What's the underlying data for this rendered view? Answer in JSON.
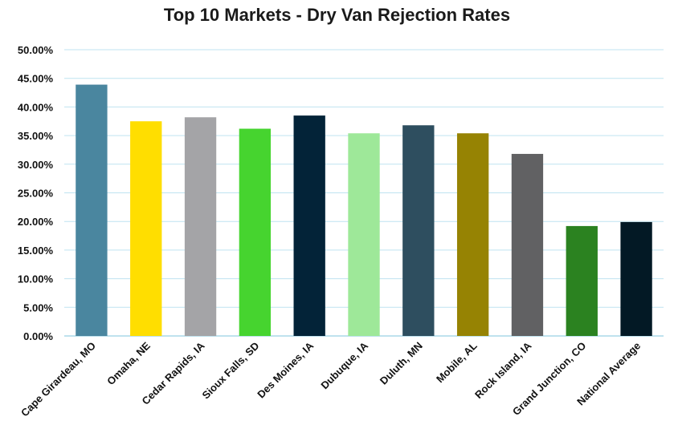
{
  "chart_data": {
    "type": "bar",
    "title": "Top 10 Markets - Dry Van Rejection Rates",
    "xlabel": "",
    "ylabel": "",
    "ylim": [
      0,
      0.5
    ],
    "y_ticks": [
      0,
      0.05,
      0.1,
      0.15,
      0.2,
      0.25,
      0.3,
      0.35,
      0.4,
      0.45,
      0.5
    ],
    "y_tick_labels": [
      "0.00%",
      "5.00%",
      "10.00%",
      "15.00%",
      "20.00%",
      "25.00%",
      "30.00%",
      "35.00%",
      "40.00%",
      "45.00%",
      "50.00%"
    ],
    "grid": true,
    "legend": "none",
    "categories": [
      "Cape Girardeau, MO",
      "Omaha, NE",
      "Cedar Rapids, IA",
      "Sioux Falls, SD",
      "Des Moines, IA",
      "Dubuque, IA",
      "Duluth, MN",
      "Mobile, AL",
      "Rock Island, IA",
      "Grand Junction, CO",
      "National Average"
    ],
    "values": [
      0.439,
      0.375,
      0.382,
      0.362,
      0.385,
      0.354,
      0.368,
      0.354,
      0.318,
      0.192,
      0.199
    ],
    "colors": [
      "#4a869f",
      "#ffde00",
      "#a4a4a7",
      "#46d42f",
      "#032338",
      "#9ee899",
      "#2e4e5f",
      "#968303",
      "#616163",
      "#2b8220",
      "#031925"
    ]
  }
}
